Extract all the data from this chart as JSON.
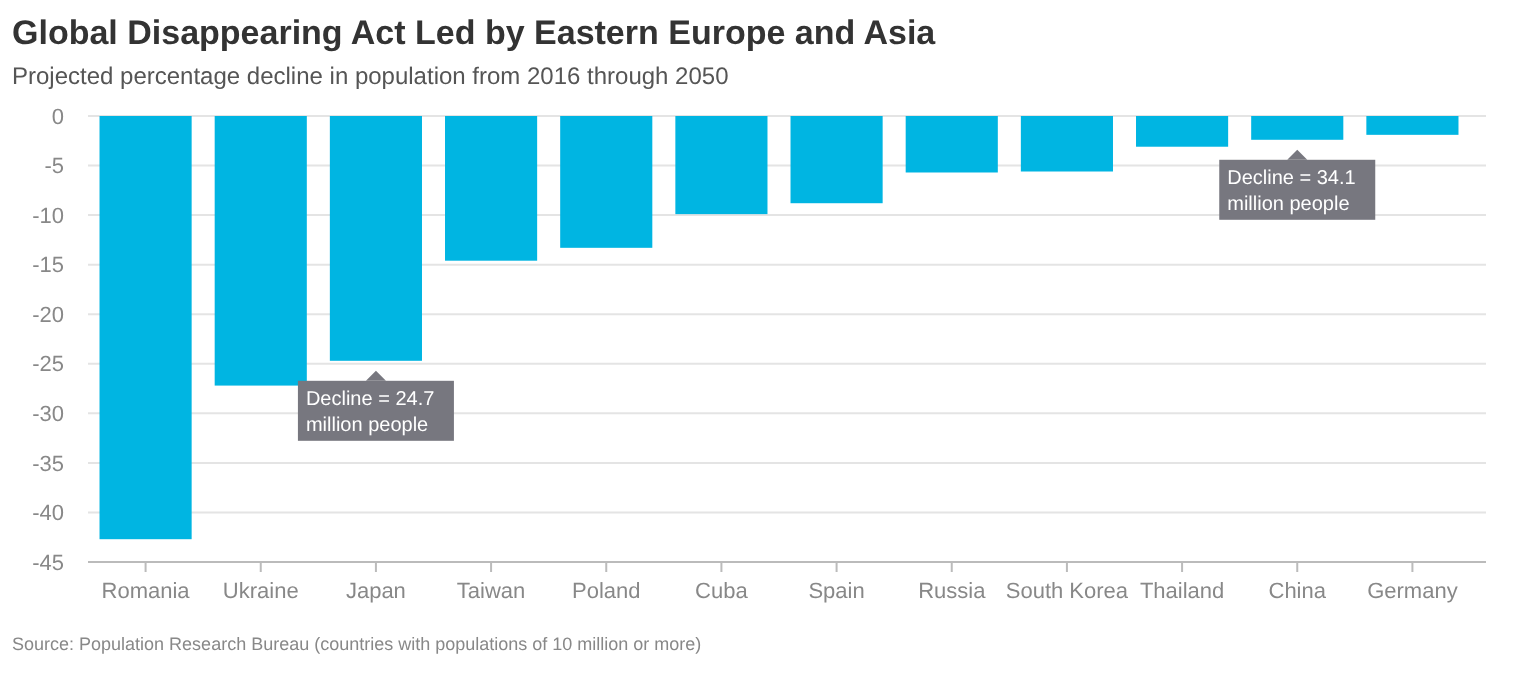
{
  "chart_data": {
    "type": "bar",
    "title": "Global Disappearing Act Led by Eastern Europe and Asia",
    "subtitle": "Projected percentage decline in population from 2016 through 2050",
    "categories": [
      "Romania",
      "Ukraine",
      "Japan",
      "Taiwan",
      "Poland",
      "Cuba",
      "Spain",
      "Russia",
      "South Korea",
      "Thailand",
      "China",
      "Germany"
    ],
    "values": [
      -42.7,
      -27.2,
      -24.7,
      -14.6,
      -13.3,
      -9.9,
      -8.8,
      -5.7,
      -5.6,
      -3.1,
      -2.4,
      -1.9
    ],
    "color": "#00b5e2",
    "ylim": [
      -45,
      0
    ],
    "yticks": [
      0,
      -5,
      -10,
      -15,
      -20,
      -25,
      -30,
      -35,
      -40,
      -45
    ],
    "grid": "y",
    "annotations": [
      {
        "text": "Decline = 24.7 million people",
        "x": "Japan",
        "y": -24.7
      },
      {
        "text": "Decline = 34.1 million people",
        "x": "China",
        "y": -2.4
      },
      "Source: Population Research Bureau (countries with populations of 10 million or more)"
    ]
  }
}
